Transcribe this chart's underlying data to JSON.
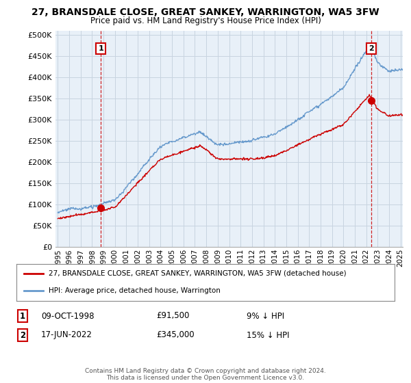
{
  "title": "27, BRANSDALE CLOSE, GREAT SANKEY, WARRINGTON, WA5 3FW",
  "subtitle": "Price paid vs. HM Land Registry's House Price Index (HPI)",
  "legend_label_red": "27, BRANSDALE CLOSE, GREAT SANKEY, WARRINGTON, WA5 3FW (detached house)",
  "legend_label_blue": "HPI: Average price, detached house, Warrington",
  "annotation1_label": "1",
  "annotation1_date": "09-OCT-1998",
  "annotation1_price": "£91,500",
  "annotation1_hpi": "9% ↓ HPI",
  "annotation1_year": 1998.77,
  "annotation1_value": 91500,
  "annotation2_label": "2",
  "annotation2_date": "17-JUN-2022",
  "annotation2_price": "£345,000",
  "annotation2_hpi": "15% ↓ HPI",
  "annotation2_year": 2022.46,
  "annotation2_value": 345000,
  "ylabel_ticks": [
    0,
    50000,
    100000,
    150000,
    200000,
    250000,
    300000,
    350000,
    400000,
    450000,
    500000
  ],
  "ylabel_labels": [
    "£0",
    "£50K",
    "£100K",
    "£150K",
    "£200K",
    "£250K",
    "£300K",
    "£350K",
    "£400K",
    "£450K",
    "£500K"
  ],
  "ylim": [
    0,
    510000
  ],
  "xlim_start": 1994.8,
  "xlim_end": 2025.2,
  "footer": "Contains HM Land Registry data © Crown copyright and database right 2024.\nThis data is licensed under the Open Government Licence v3.0.",
  "bg_color": "#ffffff",
  "plot_bg_color": "#e8f0f8",
  "grid_color": "#c8d4e0",
  "hpi_color": "#6699cc",
  "price_color": "#cc0000",
  "dashed_color": "#cc0000"
}
